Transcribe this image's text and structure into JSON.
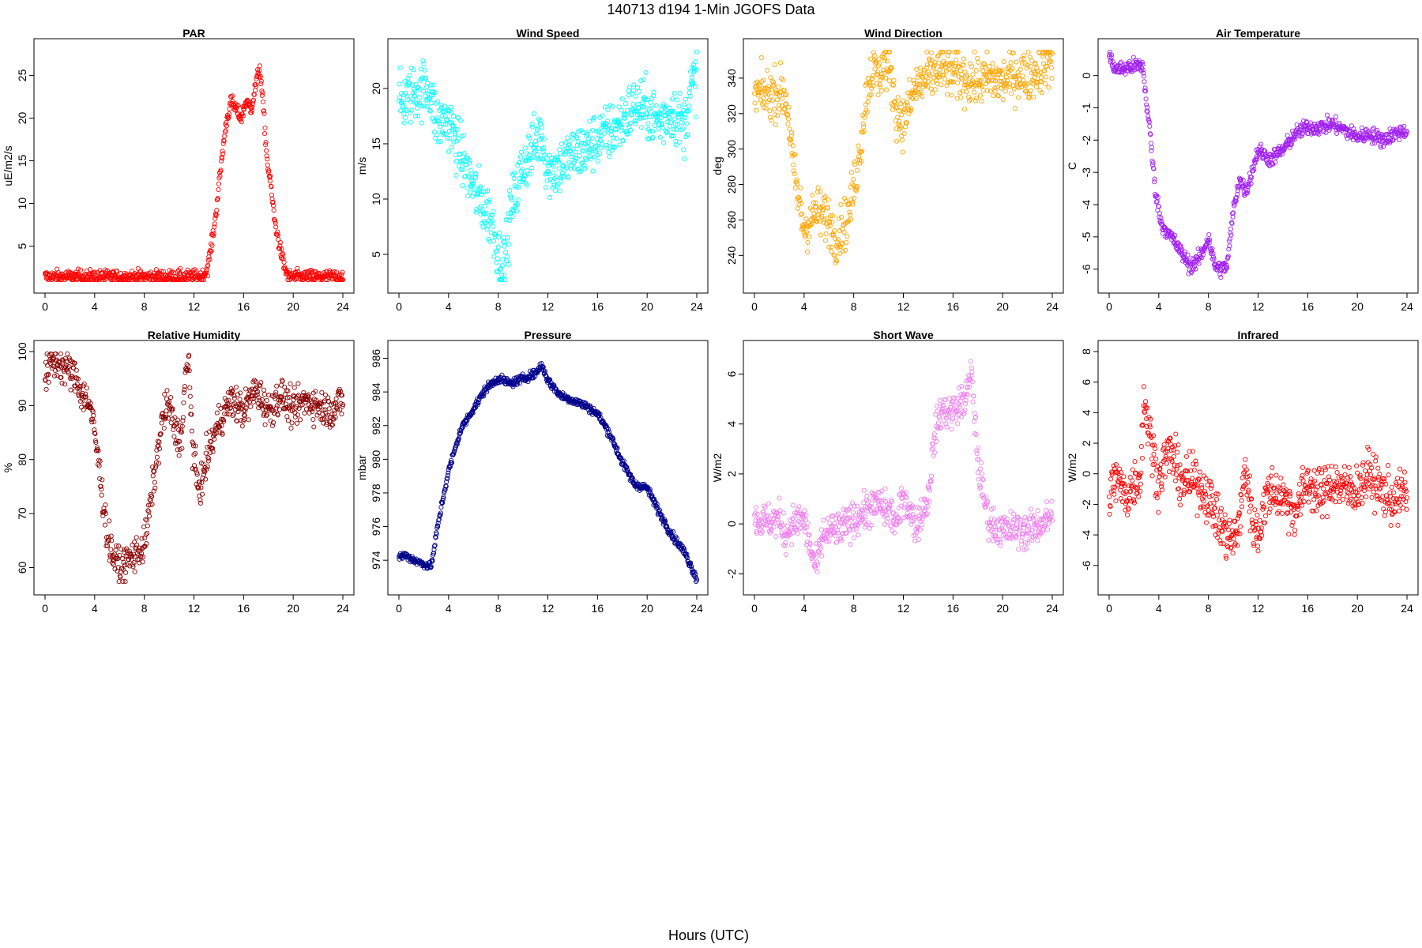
{
  "figure": {
    "title": "140713   d194   1-Min  JGOFS Data",
    "xlabel": "Hours (UTC)"
  },
  "chart_data": [
    {
      "type": "scatter",
      "title": "PAR",
      "ylabel": "uE/m2/s",
      "color": "#ff0000",
      "xlim": [
        0,
        24
      ],
      "ylim": [
        0.8,
        28
      ],
      "xticks": [
        0,
        4,
        8,
        12,
        16,
        20,
        24
      ],
      "yticks": [
        5,
        10,
        15,
        20,
        25
      ],
      "grid": false,
      "x": [
        0,
        2,
        4,
        8,
        12,
        12.8,
        13.1,
        13.4,
        13.7,
        14,
        14.3,
        14.6,
        15,
        15.4,
        15.8,
        16.2,
        16.6,
        17,
        17.3,
        17.6,
        17.9,
        18.2,
        18.5,
        18.9,
        19.3,
        19.6,
        20,
        22,
        24
      ],
      "y": [
        1.4,
        1.4,
        1.4,
        1.4,
        1.4,
        1.5,
        2.5,
        5,
        8,
        12,
        16,
        19.5,
        22,
        21,
        20,
        22,
        21,
        24,
        26,
        21,
        15,
        12,
        8,
        5,
        2.5,
        1.4,
        1.4,
        1.4,
        1.4
      ],
      "noise": 0.4
    },
    {
      "type": "scatter",
      "title": "Wind Speed",
      "ylabel": "m/s",
      "color": "#00ffff",
      "xlim": [
        0,
        24
      ],
      "ylim": [
        2.5,
        23.5
      ],
      "xticks": [
        0,
        4,
        8,
        12,
        16,
        20,
        24
      ],
      "yticks": [
        5,
        10,
        15,
        20
      ],
      "grid": false,
      "x": [
        0,
        1,
        2,
        2.5,
        3,
        4,
        5,
        6,
        7,
        7.5,
        8,
        8.3,
        8.6,
        9,
        10,
        11,
        11.5,
        12,
        13,
        14,
        15,
        16,
        17,
        18,
        19,
        20,
        21,
        22,
        23,
        23.5,
        24
      ],
      "y": [
        18.5,
        19.5,
        20,
        20,
        17,
        17,
        14,
        11,
        9,
        8,
        5,
        4,
        5,
        9,
        13,
        15,
        16,
        12.5,
        13,
        14,
        14.5,
        15.5,
        16,
        17,
        18.5,
        18,
        17,
        18,
        16.5,
        20,
        21
      ],
      "noise": 1.3
    },
    {
      "type": "scatter",
      "title": "Wind Direction",
      "ylabel": "deg",
      "color": "#ffa500",
      "xlim": [
        0,
        24
      ],
      "ylim": [
        225,
        356
      ],
      "xticks": [
        0,
        4,
        8,
        12,
        16,
        20,
        24
      ],
      "yticks": [
        240,
        260,
        280,
        300,
        320,
        340
      ],
      "grid": false,
      "x": [
        0,
        1,
        2,
        2.5,
        2.8,
        3.2,
        3.6,
        4,
        5,
        6,
        6.5,
        7,
        7.5,
        8,
        8.5,
        9,
        9.5,
        10,
        10.5,
        11,
        11.5,
        12,
        12.5,
        13,
        14,
        15,
        16,
        17,
        18,
        19,
        20,
        21,
        22,
        23,
        24
      ],
      "y": [
        331,
        331,
        332,
        330,
        315,
        285,
        270,
        255,
        265,
        260,
        250,
        255,
        260,
        278,
        300,
        330,
        345,
        340,
        350,
        340,
        320,
        315,
        325,
        335,
        340,
        345,
        342,
        340,
        338,
        340,
        338,
        342,
        341,
        345,
        352
      ],
      "noise": 7
    },
    {
      "type": "scatter",
      "title": "Air Temperature",
      "ylabel": "C",
      "color": "#a020f0",
      "xlim": [
        0,
        24
      ],
      "ylim": [
        -6.4,
        0.8
      ],
      "xticks": [
        0,
        4,
        8,
        12,
        16,
        20,
        24
      ],
      "yticks": [
        -6,
        -5,
        -4,
        -3,
        -2,
        -1,
        0
      ],
      "grid": false,
      "x": [
        0,
        0.5,
        1,
        2,
        2.7,
        3,
        3.3,
        3.7,
        4.2,
        5,
        6,
        6.5,
        7,
        7.5,
        8,
        8.5,
        9,
        9.5,
        10,
        10.5,
        11,
        11.5,
        12,
        13,
        14,
        15,
        16,
        17,
        18,
        19,
        20,
        21,
        22,
        23,
        24
      ],
      "y": [
        0.6,
        0.2,
        0.2,
        0.3,
        0.3,
        -0.8,
        -1.8,
        -3.5,
        -4.6,
        -5,
        -5.6,
        -5.9,
        -5.8,
        -5.5,
        -5,
        -5.9,
        -6,
        -5.9,
        -4.2,
        -3.2,
        -3.6,
        -3,
        -2.3,
        -2.6,
        -2.3,
        -1.8,
        -1.6,
        -1.6,
        -1.5,
        -1.7,
        -1.9,
        -1.8,
        -2,
        -1.8,
        -1.7
      ],
      "noise": 0.12
    },
    {
      "type": "scatter",
      "title": "Relative Humidity",
      "ylabel": "%",
      "color": "#8b0000",
      "xlim": [
        0,
        24
      ],
      "ylim": [
        57,
        100
      ],
      "xticks": [
        0,
        4,
        8,
        12,
        16,
        20,
        24
      ],
      "yticks": [
        60,
        70,
        80,
        90,
        100
      ],
      "grid": false,
      "x": [
        0,
        0.5,
        1,
        1.5,
        2,
        2.5,
        3,
        3.5,
        4,
        4.5,
        5,
        5.5,
        6,
        7,
        8,
        8.5,
        9,
        9.5,
        10,
        10.5,
        11,
        11.3,
        11.6,
        11.9,
        12.3,
        12.7,
        13,
        14,
        15,
        16,
        17,
        18,
        19,
        20,
        21,
        22,
        23,
        24
      ],
      "y": [
        95,
        98,
        98,
        97,
        96.5,
        95,
        92,
        91,
        85,
        76,
        66,
        62,
        60,
        62,
        64,
        72,
        80,
        88,
        90,
        85,
        84,
        95,
        98,
        82,
        75,
        76,
        80,
        87,
        91,
        89,
        93,
        89,
        92,
        89,
        91,
        90,
        89,
        91
      ],
      "noise": 1.6
    },
    {
      "type": "scatter",
      "title": "Pressure",
      "ylabel": "mbar",
      "color": "#00008b",
      "xlim": [
        0,
        24
      ],
      "ylim": [
        972.6,
        986.4
      ],
      "xticks": [
        0,
        4,
        8,
        12,
        16,
        20,
        24
      ],
      "yticks": [
        974,
        976,
        978,
        980,
        982,
        984,
        986
      ],
      "grid": false,
      "x": [
        0,
        0.5,
        1,
        1.5,
        2,
        2.5,
        2.7,
        3,
        3.5,
        4,
        5,
        6,
        7,
        8,
        9,
        10,
        11,
        11.5,
        12,
        13,
        14,
        15,
        16,
        17,
        18,
        19,
        20,
        21,
        22,
        23,
        24
      ],
      "y": [
        974.2,
        974.3,
        974.1,
        973.9,
        973.8,
        973.6,
        974,
        975.5,
        977.5,
        979.3,
        981.8,
        983,
        984.2,
        984.8,
        984.5,
        984.8,
        985.1,
        985.6,
        984.7,
        983.8,
        983.5,
        983.2,
        982.7,
        981.5,
        979.8,
        978.5,
        978.3,
        976.8,
        975.5,
        974.5,
        972.9
      ],
      "noise": 0.12
    },
    {
      "type": "scatter",
      "title": "Short Wave",
      "ylabel": "W/m2",
      "color": "#ee82ee",
      "xlim": [
        0,
        24
      ],
      "ylim": [
        -2.4,
        6.9
      ],
      "xticks": [
        0,
        4,
        8,
        12,
        16,
        20,
        24
      ],
      "yticks": [
        -2,
        0,
        2,
        4,
        6
      ],
      "grid": false,
      "x": [
        0,
        1,
        2,
        2.5,
        3,
        4,
        4.5,
        5,
        5.5,
        6,
        7,
        8,
        9,
        10,
        11,
        11.5,
        12,
        13,
        14,
        14.5,
        15,
        16,
        17,
        17.5,
        18,
        18.5,
        19,
        19.5,
        20,
        21,
        22,
        23,
        24
      ],
      "y": [
        0.2,
        0.1,
        0.2,
        -0.5,
        0,
        0.2,
        -1,
        -1.8,
        -0.5,
        -0.3,
        -0.2,
        0.2,
        0.5,
        0.8,
        0.4,
        0,
        1.2,
        -0.1,
        1,
        3.5,
        4.5,
        4.5,
        5,
        6,
        2.5,
        1,
        0,
        -0.1,
        -0.3,
        -0.2,
        -0.3,
        0,
        0.3
      ],
      "noise": 0.35
    },
    {
      "type": "scatter",
      "title": "Infrared",
      "ylabel": "W/m2",
      "color": "#ff0000",
      "xlim": [
        0,
        24
      ],
      "ylim": [
        -7.2,
        8
      ],
      "xticks": [
        0,
        4,
        8,
        12,
        16,
        20,
        24
      ],
      "yticks": [
        -6,
        -4,
        -2,
        0,
        2,
        4,
        6,
        8
      ],
      "grid": false,
      "x": [
        0,
        0.5,
        1,
        1.5,
        2,
        2.5,
        2.8,
        3.2,
        3.6,
        4,
        4.5,
        5,
        5.5,
        6,
        7,
        8,
        8.5,
        9,
        9.5,
        10,
        10.5,
        11,
        11.5,
        12,
        12.5,
        13,
        14,
        15,
        16,
        17,
        18,
        19,
        20,
        21,
        22,
        23,
        24
      ],
      "y": [
        -1.5,
        -0.2,
        -1,
        -1.5,
        -0.5,
        -0.3,
        5,
        3,
        1,
        -0.5,
        1,
        1.5,
        0,
        -0.5,
        -0.5,
        -1.5,
        -2.5,
        -3.5,
        -4,
        -4.5,
        -3,
        0.5,
        -3,
        -4,
        -2,
        -1,
        -1.5,
        -2.5,
        -0.5,
        -1.5,
        -0.5,
        -1,
        -1,
        0,
        -1.2,
        -1.8,
        -1.2
      ],
      "noise": 0.8
    }
  ]
}
